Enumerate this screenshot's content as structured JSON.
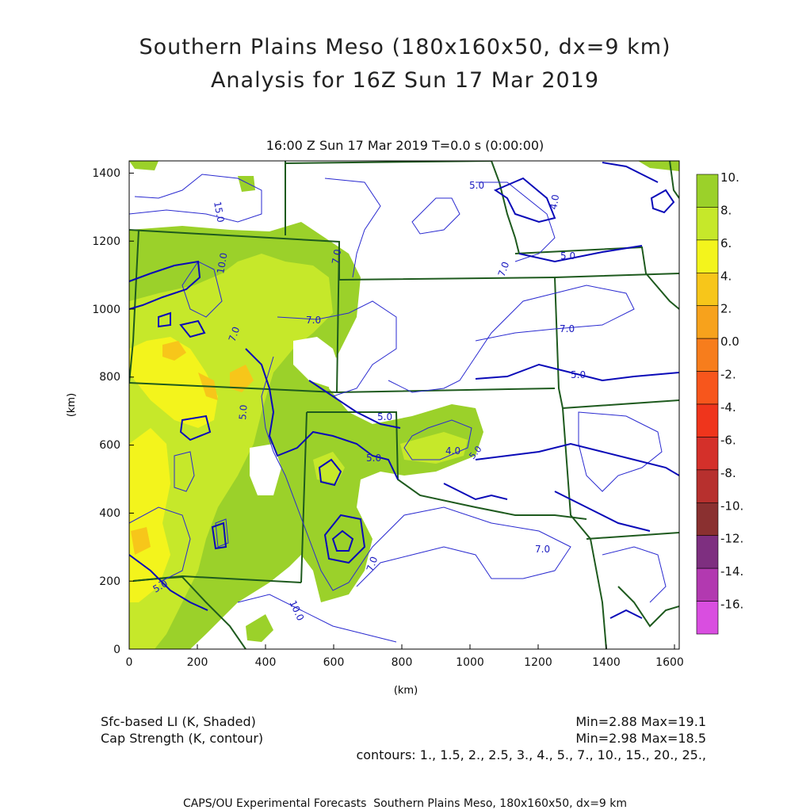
{
  "title_line1": "Southern Plains Meso (180x160x50, dx=9 km)",
  "title_line2": "Analysis for 16Z Sun 17 Mar 2019",
  "time_header": "16:00 Z Sun 17 Mar 2019    T=0.0 s (0:00:00)",
  "x_axis": {
    "label": "(km)",
    "ticks": [
      "0",
      "200",
      "400",
      "600",
      "800",
      "1000",
      "1200",
      "1400",
      "1600"
    ]
  },
  "y_axis": {
    "label": "(km)",
    "ticks": [
      "0",
      "200",
      "400",
      "600",
      "800",
      "1000",
      "1200",
      "1400"
    ]
  },
  "colorbar": {
    "labels": [
      "10.",
      "8.",
      "6.",
      "4.",
      "2.",
      "0.0",
      "-2.",
      "-4.",
      "-6.",
      "-8.",
      "-10.",
      "-12.",
      "-14.",
      "-16."
    ],
    "colors": [
      "#9bd12a",
      "#c6e82a",
      "#f3f41c",
      "#f7c61a",
      "#f7a21c",
      "#f77d1c",
      "#f7561c",
      "#ef351c",
      "#d4302a",
      "#b7302e",
      "#8a3030",
      "#7e2f80",
      "#b239b0",
      "#d94ee0"
    ]
  },
  "contour_labels": [
    "15.0",
    "10.0",
    "7.0",
    "7.0",
    "7.0",
    "5.0",
    "5.0",
    "5.0",
    "5.0",
    "4.0",
    "4.0",
    "5.0",
    "5.0",
    "7.0",
    "7.0",
    "7.0",
    "7.0",
    "10.0",
    "5.0",
    "5.0"
  ],
  "legend": {
    "shaded": "Sfc-based LI (K, Shaded)",
    "contour": "Cap Strength (K, contour)",
    "shaded_stats": "Min=2.88 Max=19.1",
    "contour_stats": "Min=2.98 Max=18.5",
    "contours": "contours: 1., 1.5, 2., 2.5, 3., 4., 5., 7., 10., 15., 20., 25.,"
  },
  "footer": "CAPS/OU Experimental Forecasts  Southern Plains Meso, 180x160x50, dx=9 km",
  "colors": {
    "border": "#1e5a1e",
    "contour_thin": "#2a2ad0",
    "contour_thick": "#0a0ab8"
  }
}
